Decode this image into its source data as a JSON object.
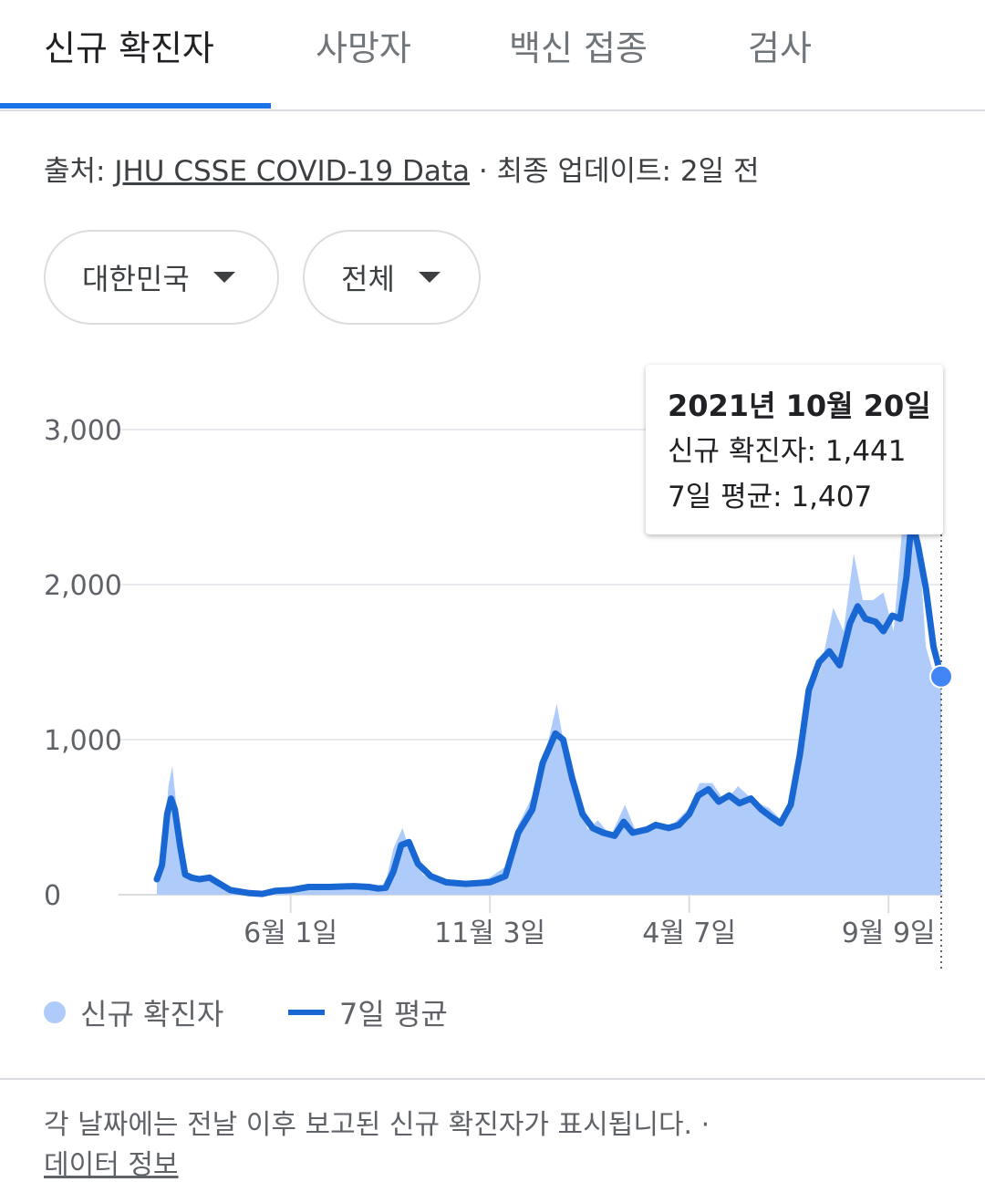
{
  "tabs": [
    {
      "label": "신규 확진자",
      "active": true
    },
    {
      "label": "사망자",
      "active": false
    },
    {
      "label": "백신 접종",
      "active": false
    },
    {
      "label": "검사",
      "active": false
    }
  ],
  "source": {
    "prefix": "출처: ",
    "link": "JHU CSSE COVID-19 Data",
    "suffix": " · 최종 업데이트: 2일 전"
  },
  "filters": {
    "region": "대한민국",
    "period": "전체"
  },
  "tooltip": {
    "date": "2021년 10월 20일",
    "cases_line": "신규 확진자: 1,441",
    "avg_line": "7일 평균: 1,407"
  },
  "legend": {
    "cases": "신규 확진자",
    "avg": "7일 평균"
  },
  "footer": {
    "note": "각 날짜에는 전날 이후 보고된 신규 확진자가 표시됩니다.  ·",
    "link": "데이터 정보"
  },
  "colors": {
    "area": "#aecbfa",
    "line": "#1967d2",
    "accent": "#1a73e8",
    "grid": "#e8eaed"
  },
  "chart_data": {
    "type": "area",
    "x_start": "2020-02-18",
    "x_end": "2021-10-20",
    "ylim": [
      0,
      3000
    ],
    "yticks": [
      0,
      1000,
      2000,
      3000
    ],
    "ytick_labels": [
      "0",
      "1,000",
      "2,000",
      "3,000"
    ],
    "xticks": [
      {
        "date": "2020-06-01",
        "label": "6월 1일"
      },
      {
        "date": "2020-11-03",
        "label": "11월 3일"
      },
      {
        "date": "2021-04-07",
        "label": "4월 7일"
      },
      {
        "date": "2021-09-09",
        "label": "9월 9일"
      }
    ],
    "highlight": {
      "date": "2021-10-20",
      "cases": 1441,
      "avg": 1407
    },
    "series": [
      {
        "name": "신규 확진자",
        "kind": "area",
        "points": [
          [
            "2020-02-18",
            100
          ],
          [
            "2020-02-22",
            230
          ],
          [
            "2020-02-27",
            700
          ],
          [
            "2020-03-01",
            830
          ],
          [
            "2020-03-05",
            510
          ],
          [
            "2020-03-10",
            200
          ],
          [
            "2020-03-15",
            95
          ],
          [
            "2020-03-20",
            120
          ],
          [
            "2020-03-28",
            100
          ],
          [
            "2020-04-05",
            75
          ],
          [
            "2020-04-15",
            30
          ],
          [
            "2020-04-30",
            8
          ],
          [
            "2020-05-10",
            15
          ],
          [
            "2020-05-20",
            25
          ],
          [
            "2020-06-01",
            45
          ],
          [
            "2020-06-20",
            50
          ],
          [
            "2020-07-01",
            55
          ],
          [
            "2020-07-20",
            60
          ],
          [
            "2020-08-01",
            45
          ],
          [
            "2020-08-10",
            35
          ],
          [
            "2020-08-15",
            120
          ],
          [
            "2020-08-20",
            300
          ],
          [
            "2020-08-27",
            430
          ],
          [
            "2020-09-03",
            250
          ],
          [
            "2020-09-12",
            130
          ],
          [
            "2020-09-25",
            75
          ],
          [
            "2020-10-10",
            70
          ],
          [
            "2020-10-20",
            80
          ],
          [
            "2020-11-03",
            110
          ],
          [
            "2020-11-15",
            180
          ],
          [
            "2020-11-25",
            450
          ],
          [
            "2020-12-10",
            700
          ],
          [
            "2020-12-20",
            1050
          ],
          [
            "2020-12-25",
            1230
          ],
          [
            "2020-12-30",
            1000
          ],
          [
            "2021-01-08",
            700
          ],
          [
            "2021-01-18",
            420
          ],
          [
            "2021-01-26",
            480
          ],
          [
            "2021-02-05",
            380
          ],
          [
            "2021-02-16",
            580
          ],
          [
            "2021-02-25",
            400
          ],
          [
            "2021-03-10",
            450
          ],
          [
            "2021-03-25",
            450
          ],
          [
            "2021-04-07",
            560
          ],
          [
            "2021-04-15",
            720
          ],
          [
            "2021-04-25",
            720
          ],
          [
            "2021-05-05",
            600
          ],
          [
            "2021-05-15",
            700
          ],
          [
            "2021-05-28",
            600
          ],
          [
            "2021-06-08",
            560
          ],
          [
            "2021-06-18",
            480
          ],
          [
            "2021-06-28",
            620
          ],
          [
            "2021-07-08",
            1270
          ],
          [
            "2021-07-18",
            1450
          ],
          [
            "2021-07-28",
            1850
          ],
          [
            "2021-08-05",
            1700
          ],
          [
            "2021-08-13",
            2200
          ],
          [
            "2021-08-20",
            1900
          ],
          [
            "2021-08-28",
            1900
          ],
          [
            "2021-09-05",
            1950
          ],
          [
            "2021-09-13",
            1700
          ],
          [
            "2021-09-20",
            2400
          ],
          [
            "2021-09-25",
            3270
          ],
          [
            "2021-10-01",
            2500
          ],
          [
            "2021-10-08",
            1600
          ],
          [
            "2021-10-15",
            1400
          ],
          [
            "2021-10-20",
            1441
          ]
        ]
      },
      {
        "name": "7일 평균",
        "kind": "line",
        "points": [
          [
            "2020-02-18",
            100
          ],
          [
            "2020-02-22",
            190
          ],
          [
            "2020-02-26",
            520
          ],
          [
            "2020-02-29",
            620
          ],
          [
            "2020-03-03",
            550
          ],
          [
            "2020-03-07",
            320
          ],
          [
            "2020-03-11",
            130
          ],
          [
            "2020-03-16",
            110
          ],
          [
            "2020-03-22",
            100
          ],
          [
            "2020-03-30",
            110
          ],
          [
            "2020-04-07",
            70
          ],
          [
            "2020-04-15",
            30
          ],
          [
            "2020-04-30",
            10
          ],
          [
            "2020-05-10",
            5
          ],
          [
            "2020-05-20",
            25
          ],
          [
            "2020-06-01",
            30
          ],
          [
            "2020-06-15",
            50
          ],
          [
            "2020-07-01",
            50
          ],
          [
            "2020-07-20",
            55
          ],
          [
            "2020-08-01",
            50
          ],
          [
            "2020-08-08",
            40
          ],
          [
            "2020-08-14",
            45
          ],
          [
            "2020-08-20",
            150
          ],
          [
            "2020-08-26",
            320
          ],
          [
            "2020-09-01",
            340
          ],
          [
            "2020-09-08",
            200
          ],
          [
            "2020-09-18",
            120
          ],
          [
            "2020-09-30",
            80
          ],
          [
            "2020-10-15",
            70
          ],
          [
            "2020-11-03",
            80
          ],
          [
            "2020-11-15",
            120
          ],
          [
            "2020-11-25",
            400
          ],
          [
            "2020-12-06",
            550
          ],
          [
            "2020-12-14",
            850
          ],
          [
            "2020-12-24",
            1040
          ],
          [
            "2020-12-30",
            1000
          ],
          [
            "2021-01-06",
            750
          ],
          [
            "2021-01-14",
            520
          ],
          [
            "2021-01-22",
            430
          ],
          [
            "2021-01-30",
            400
          ],
          [
            "2021-02-08",
            380
          ],
          [
            "2021-02-15",
            470
          ],
          [
            "2021-02-22",
            400
          ],
          [
            "2021-03-05",
            420
          ],
          [
            "2021-03-12",
            450
          ],
          [
            "2021-03-22",
            430
          ],
          [
            "2021-03-30",
            450
          ],
          [
            "2021-04-07",
            520
          ],
          [
            "2021-04-14",
            640
          ],
          [
            "2021-04-22",
            680
          ],
          [
            "2021-04-30",
            600
          ],
          [
            "2021-05-08",
            640
          ],
          [
            "2021-05-16",
            590
          ],
          [
            "2021-05-25",
            620
          ],
          [
            "2021-06-02",
            550
          ],
          [
            "2021-06-10",
            500
          ],
          [
            "2021-06-17",
            460
          ],
          [
            "2021-06-25",
            580
          ],
          [
            "2021-07-02",
            900
          ],
          [
            "2021-07-09",
            1320
          ],
          [
            "2021-07-17",
            1500
          ],
          [
            "2021-07-25",
            1570
          ],
          [
            "2021-08-02",
            1480
          ],
          [
            "2021-08-10",
            1750
          ],
          [
            "2021-08-16",
            1860
          ],
          [
            "2021-08-22",
            1780
          ],
          [
            "2021-08-30",
            1760
          ],
          [
            "2021-09-05",
            1700
          ],
          [
            "2021-09-12",
            1800
          ],
          [
            "2021-09-18",
            1780
          ],
          [
            "2021-09-23",
            2050
          ],
          [
            "2021-09-27",
            2420
          ],
          [
            "2021-10-02",
            2250
          ],
          [
            "2021-10-08",
            1980
          ],
          [
            "2021-10-14",
            1600
          ],
          [
            "2021-10-20",
            1407
          ]
        ]
      }
    ]
  }
}
